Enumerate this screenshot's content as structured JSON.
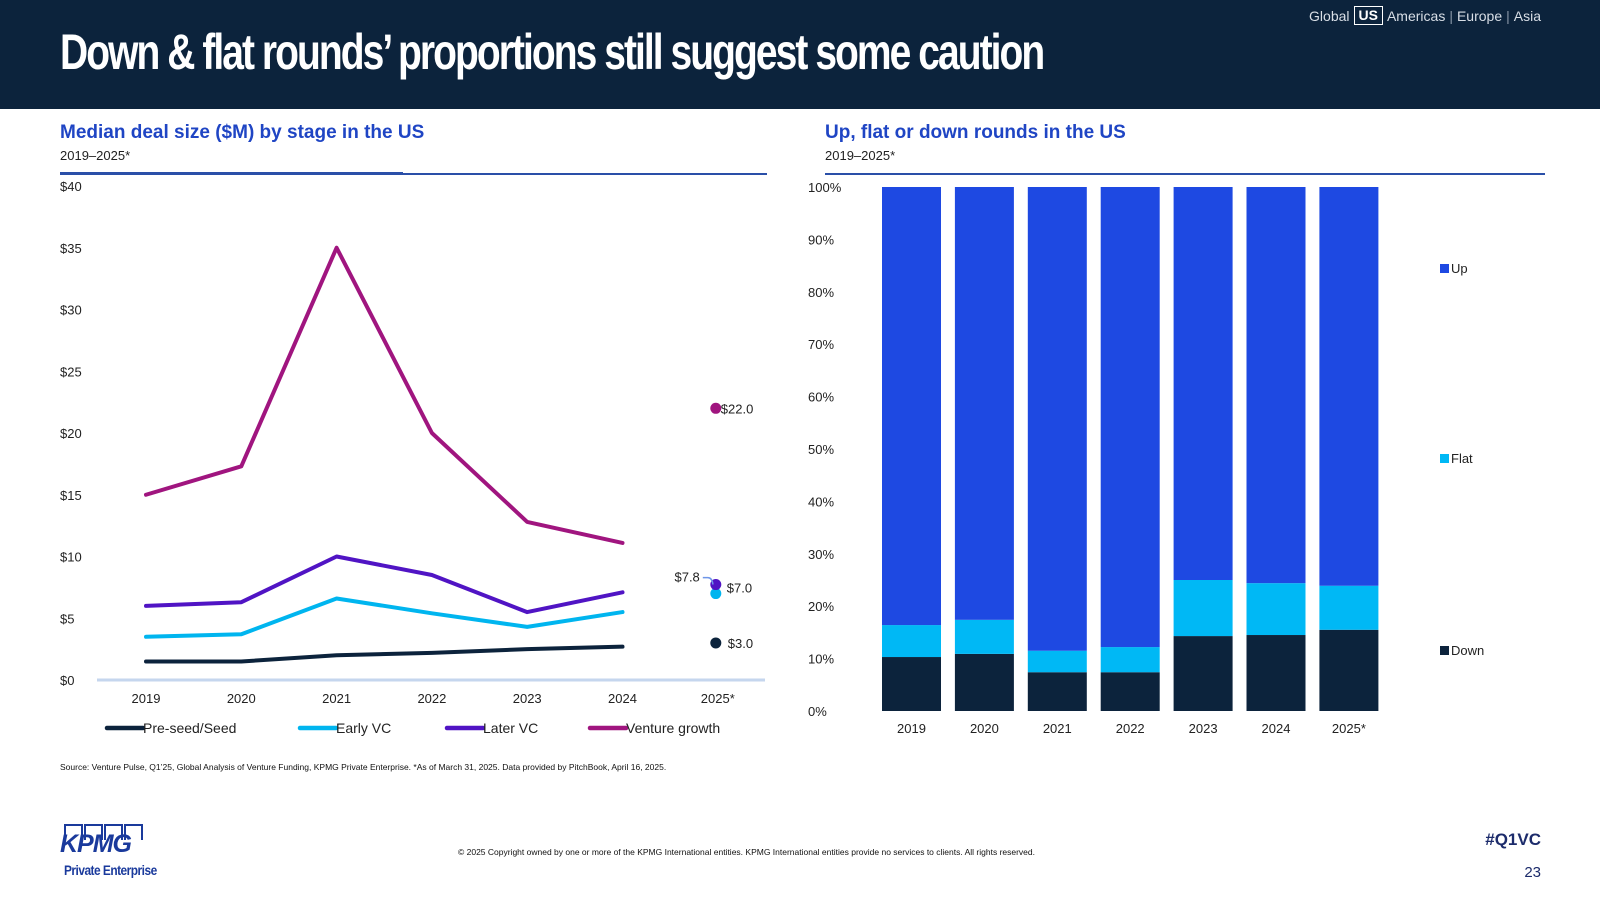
{
  "header": {
    "title": "Down & flat rounds’ proportions still suggest some caution",
    "region_nav": {
      "items": [
        "Global",
        "US",
        "Americas",
        "Europe",
        "Asia"
      ],
      "selected": "US",
      "separator": "|"
    }
  },
  "colors": {
    "header_bg": "#0c233c",
    "accent_blue": "#1f45c4",
    "pre_seed": "#0c233c",
    "early_vc": "#00b5ef",
    "later_vc": "#5014c4",
    "venture_growth": "#a0157f",
    "up": "#1e49e2",
    "flat": "#00b8f5",
    "down": "#0c233c"
  },
  "left_panel": {
    "title": "Median deal size ($M) by stage in the US",
    "subtitle": "2019–2025*"
  },
  "right_panel": {
    "title": "Up, flat or down rounds in the US",
    "subtitle": "2019–2025*"
  },
  "chart_data": [
    {
      "type": "line",
      "title": "Median deal size ($M) by stage in the US",
      "subtitle": "2019–2025*",
      "xlabel": "",
      "ylabel": "",
      "categories": [
        "2019",
        "2020",
        "2021",
        "2022",
        "2023",
        "2024",
        "2025*"
      ],
      "yticks": [
        "$0",
        "$5",
        "$10",
        "$15",
        "$20",
        "$25",
        "$30",
        "$35",
        "$40"
      ],
      "ylim": [
        0,
        40
      ],
      "grid": false,
      "legend": "bottom",
      "series": [
        {
          "name": "Pre-seed/Seed",
          "values": [
            1.5,
            1.5,
            2.0,
            2.2,
            2.5,
            2.7,
            3.0
          ],
          "label_2025": "$3.0"
        },
        {
          "name": "Early VC",
          "values": [
            3.5,
            3.7,
            6.6,
            5.4,
            4.3,
            5.5,
            7.0
          ],
          "label_2025": "$7.0"
        },
        {
          "name": "Later VC",
          "values": [
            6.0,
            6.3,
            10.0,
            8.5,
            5.5,
            7.1,
            7.8
          ],
          "label_2025": "$7.8"
        },
        {
          "name": "Venture growth",
          "values": [
            15.0,
            17.3,
            35.0,
            20.0,
            12.8,
            11.1,
            22.0
          ],
          "label_2025": "$22.0"
        }
      ],
      "note": "2025* shown as standalone points with data labels"
    },
    {
      "type": "bar",
      "stacked": true,
      "title": "Up, flat or down rounds in the US",
      "subtitle": "2019–2025*",
      "categories": [
        "2019",
        "2020",
        "2021",
        "2022",
        "2023",
        "2024",
        "2025*"
      ],
      "yticks": [
        "0%",
        "10%",
        "20%",
        "30%",
        "40%",
        "50%",
        "60%",
        "70%",
        "80%",
        "90%",
        "100%"
      ],
      "ylim": [
        0,
        100
      ],
      "grid": false,
      "legend": "right",
      "series": [
        {
          "name": "Down",
          "values": [
            10.3,
            10.9,
            7.4,
            7.4,
            14.3,
            14.5,
            15.5
          ]
        },
        {
          "name": "Flat",
          "values": [
            6.1,
            6.5,
            4.1,
            4.8,
            10.7,
            9.9,
            8.4
          ]
        },
        {
          "name": "Up",
          "values": [
            83.6,
            82.6,
            88.5,
            87.8,
            75.0,
            75.6,
            76.1
          ]
        }
      ],
      "legend_order": [
        "Up",
        "Flat",
        "Down"
      ]
    }
  ],
  "footer": {
    "source": "Source: Venture Pulse, Q1’25, Global Analysis of Venture Funding, KPMG Private Enterprise. *As of March 31, 2025. Data provided by PitchBook, April 16, 2025.",
    "copyright": "© 2025 Copyright owned by one or more of the KPMG International entities. KPMG International entities provide no services to clients. All rights reserved.",
    "hashtag": "#Q1VC",
    "page_number": "23",
    "logo_text": "KPMG",
    "logo_subtext": "Private Enterprise"
  }
}
